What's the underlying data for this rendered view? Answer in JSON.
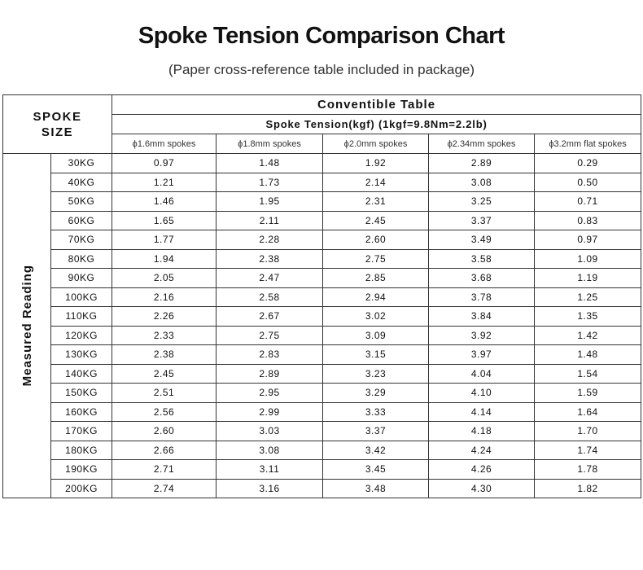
{
  "header": {
    "title": "Spoke Tension Comparison Chart",
    "subtitle": "(Paper cross-reference table included in package)"
  },
  "table": {
    "corner": [
      "SPOKE",
      "SIZE"
    ],
    "group_title": "Conventible Table",
    "subheader": "Spoke Tension(kgf)  (1kgf=9.8Nm=2.2lb)",
    "columns": [
      "ϕ1.6mm spokes",
      "ϕ1.8mm spokes",
      "ϕ2.0mm spokes",
      "ϕ2.34mm spokes",
      "ϕ3.2mm flat spokes"
    ],
    "row_group_label": "Measured Reading",
    "rows": [
      {
        "label": "30KG",
        "values": [
          "0.97",
          "1.48",
          "1.92",
          "2.89",
          "0.29"
        ]
      },
      {
        "label": "40KG",
        "values": [
          "1.21",
          "1.73",
          "2.14",
          "3.08",
          "0.50"
        ]
      },
      {
        "label": "50KG",
        "values": [
          "1.46",
          "1.95",
          "2.31",
          "3.25",
          "0.71"
        ]
      },
      {
        "label": "60KG",
        "values": [
          "1.65",
          "2.11",
          "2.45",
          "3.37",
          "0.83"
        ]
      },
      {
        "label": "70KG",
        "values": [
          "1.77",
          "2.28",
          "2.60",
          "3.49",
          "0.97"
        ]
      },
      {
        "label": "80KG",
        "values": [
          "1.94",
          "2.38",
          "2.75",
          "3.58",
          "1.09"
        ]
      },
      {
        "label": "90KG",
        "values": [
          "2.05",
          "2.47",
          "2.85",
          "3.68",
          "1.19"
        ]
      },
      {
        "label": "100KG",
        "values": [
          "2.16",
          "2.58",
          "2.94",
          "3.78",
          "1.25"
        ]
      },
      {
        "label": "110KG",
        "values": [
          "2.26",
          "2.67",
          "3.02",
          "3.84",
          "1.35"
        ]
      },
      {
        "label": "120KG",
        "values": [
          "2.33",
          "2.75",
          "3.09",
          "3.92",
          "1.42"
        ]
      },
      {
        "label": "130KG",
        "values": [
          "2.38",
          "2.83",
          "3.15",
          "3.97",
          "1.48"
        ]
      },
      {
        "label": "140KG",
        "values": [
          "2.45",
          "2.89",
          "3.23",
          "4.04",
          "1.54"
        ]
      },
      {
        "label": "150KG",
        "values": [
          "2.51",
          "2.95",
          "3.29",
          "4.10",
          "1.59"
        ]
      },
      {
        "label": "160KG",
        "values": [
          "2.56",
          "2.99",
          "3.33",
          "4.14",
          "1.64"
        ]
      },
      {
        "label": "170KG",
        "values": [
          "2.60",
          "3.03",
          "3.37",
          "4.18",
          "1.70"
        ]
      },
      {
        "label": "180KG",
        "values": [
          "2.66",
          "3.08",
          "3.42",
          "4.24",
          "1.74"
        ]
      },
      {
        "label": "190KG",
        "values": [
          "2.71",
          "3.11",
          "3.45",
          "4.26",
          "1.78"
        ]
      },
      {
        "label": "200KG",
        "values": [
          "2.74",
          "3.16",
          "3.48",
          "4.30",
          "1.82"
        ]
      }
    ]
  }
}
